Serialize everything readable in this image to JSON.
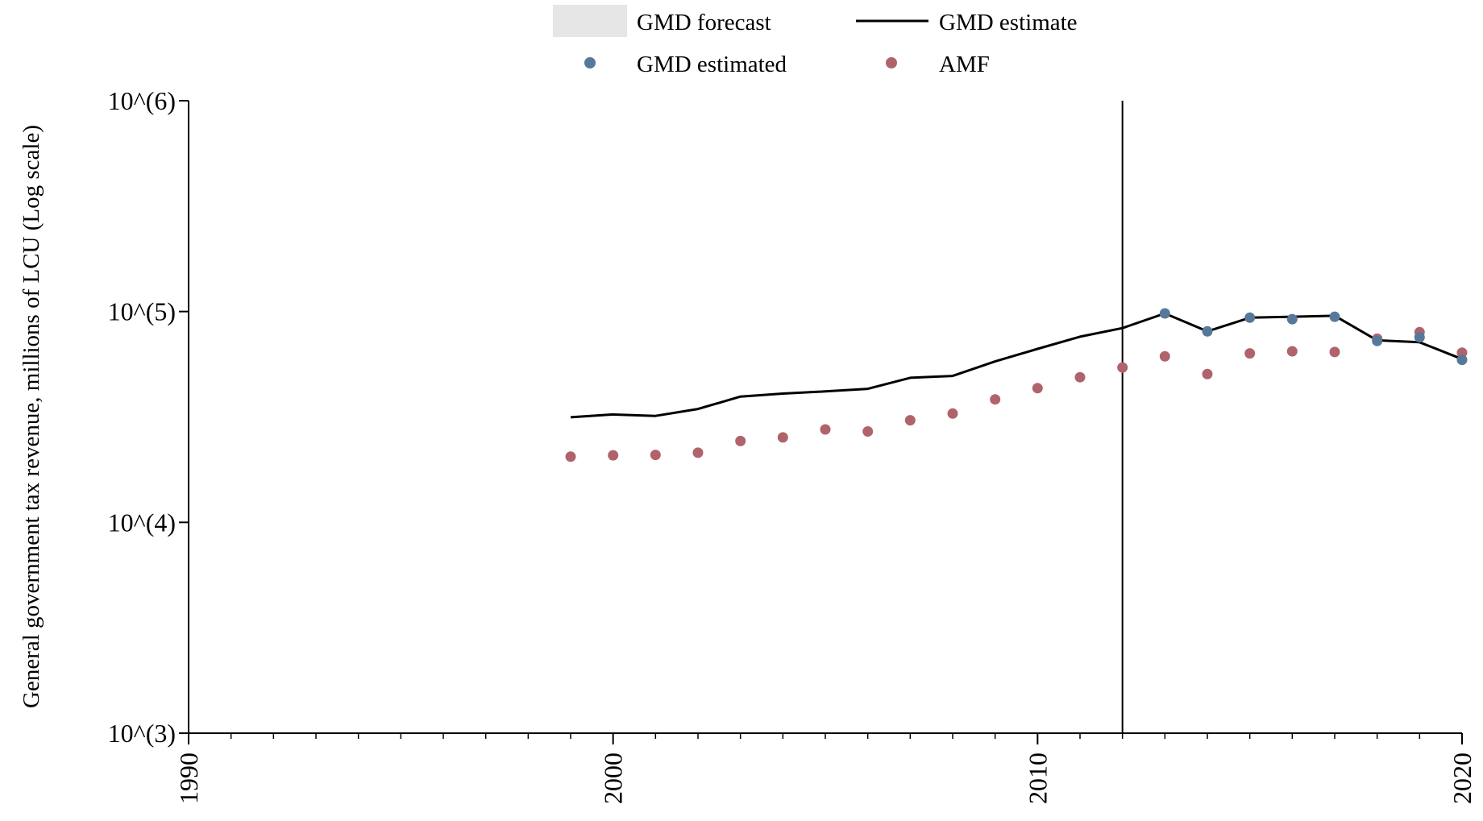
{
  "chart_data": {
    "type": "line",
    "title": "",
    "xlabel": "",
    "ylabel": "General government tax revenue, millions of LCU (Log scale)",
    "y_scale": "log",
    "xlim": [
      1990,
      2020
    ],
    "ylim": [
      1000,
      1000000
    ],
    "x_ticks": [
      1990,
      2000,
      2010,
      2020
    ],
    "x_tick_labels": [
      "1990",
      "2000",
      "2010",
      "2020"
    ],
    "y_ticks": [
      1000,
      10000,
      100000,
      1000000
    ],
    "y_tick_labels": [
      "10^(3)",
      "10^(4)",
      "10^(5)",
      "10^(6)"
    ],
    "x_minor_step": 1,
    "grid": false,
    "legend_position": "top-center",
    "reference_line_x": 2012,
    "legend": {
      "forecast": "GMD forecast",
      "estimate": "GMD estimate",
      "estimated": "GMD estimated",
      "amf": "AMF"
    },
    "series": [
      {
        "name": "GMD estimate",
        "kind": "line",
        "color": "#000000",
        "x": [
          1999,
          2000,
          2001,
          2002,
          2003,
          2004,
          2005,
          2006,
          2007,
          2008,
          2009,
          2010,
          2011,
          2012,
          2013,
          2014,
          2015,
          2016,
          2017,
          2018,
          2019,
          2020
        ],
        "y": [
          31500,
          32500,
          32000,
          34500,
          39500,
          40800,
          41800,
          43000,
          48500,
          49500,
          58000,
          66500,
          76000,
          83500,
          98000,
          80500,
          93500,
          94500,
          95500,
          73000,
          71500,
          59500
        ]
      },
      {
        "name": "GMD estimated",
        "kind": "scatter",
        "color": "#56789b",
        "x": [
          2013,
          2014,
          2015,
          2016,
          2017,
          2018,
          2019,
          2020
        ],
        "y": [
          98000,
          80500,
          93500,
          92000,
          94500,
          72500,
          75500,
          59000
        ]
      },
      {
        "name": "AMF",
        "kind": "scatter",
        "color": "#b0636b",
        "x": [
          1999,
          2000,
          2001,
          2002,
          2003,
          2004,
          2005,
          2006,
          2007,
          2008,
          2009,
          2010,
          2011,
          2012,
          2013,
          2014,
          2015,
          2016,
          2017,
          2018,
          2019,
          2020
        ],
        "y": [
          20500,
          20800,
          20900,
          21400,
          24300,
          25300,
          27600,
          27000,
          30500,
          32800,
          38300,
          43300,
          48800,
          54300,
          61300,
          50500,
          63300,
          64800,
          64300,
          74300,
          79800,
          63800
        ]
      }
    ],
    "colors": {
      "forecast_swatch": "#e6e6e6",
      "estimate_line": "#000000",
      "estimated_dot": "#56789b",
      "amf_dot": "#b0636b",
      "axis": "#000000"
    }
  }
}
